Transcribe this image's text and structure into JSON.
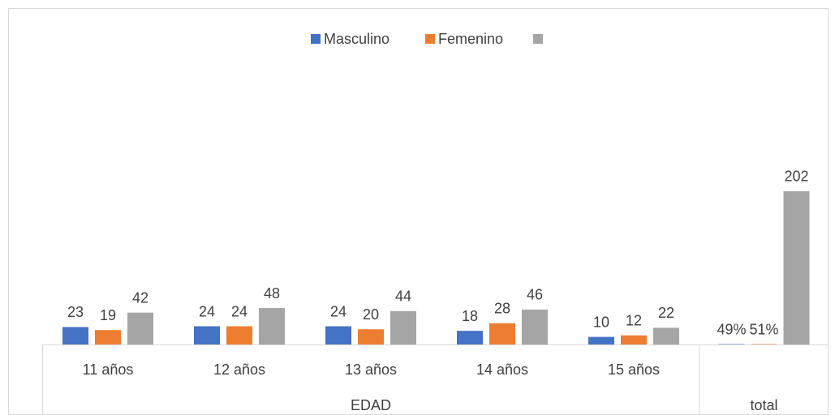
{
  "chart_data": {
    "type": "bar",
    "categories": [
      "11 años",
      "12 años",
      "13 años",
      "14 años",
      "15 años",
      null
    ],
    "category_groups": [
      {
        "label": "EDAD",
        "span": 5
      },
      {
        "label": "total",
        "span": 1
      }
    ],
    "series": [
      {
        "name": "Masculino",
        "color": "#4472c4",
        "values": [
          23,
          24,
          24,
          18,
          10,
          0.49
        ],
        "value_labels": [
          "23",
          "24",
          "24",
          "18",
          "10",
          "49%"
        ]
      },
      {
        "name": "Femenino",
        "color": "#ed7d31",
        "values": [
          19,
          24,
          20,
          28,
          12,
          0.51
        ],
        "value_labels": [
          "19",
          "24",
          "20",
          "28",
          "12",
          "51%"
        ]
      },
      {
        "color": "#a5a5a5",
        "values": [
          42,
          48,
          44,
          46,
          22,
          202
        ]
      }
    ],
    "ylim": [
      0,
      250
    ],
    "legend": "top"
  }
}
